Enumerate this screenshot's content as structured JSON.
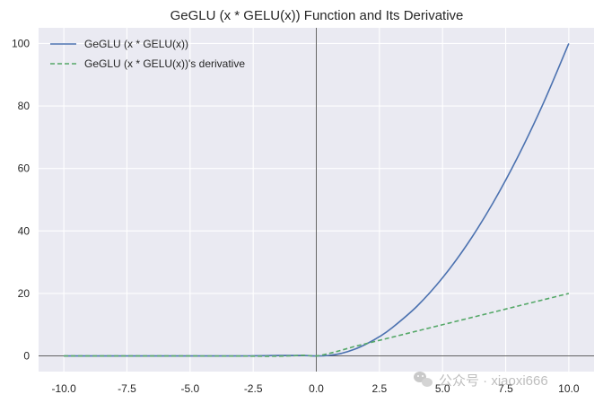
{
  "chart_data": {
    "type": "line",
    "title": "GeGLU (x * GELU(x)) Function and Its Derivative",
    "xlabel": "",
    "ylabel": "",
    "xlim": [
      -11.0,
      11.0
    ],
    "ylim": [
      -5,
      105
    ],
    "xticks": [
      -10.0,
      -7.5,
      -5.0,
      -2.5,
      0.0,
      2.5,
      5.0,
      7.5,
      10.0
    ],
    "xtick_labels": [
      "-10.0",
      "-7.5",
      "-5.0",
      "-2.5",
      "0.0",
      "2.5",
      "5.0",
      "7.5",
      "10.0"
    ],
    "yticks": [
      0,
      20,
      40,
      60,
      80,
      100
    ],
    "ytick_labels": [
      "0",
      "20",
      "40",
      "60",
      "80",
      "100"
    ],
    "grid": true,
    "legend_position": "top-left",
    "series": [
      {
        "name": "GeGLU (x * GELU(x))",
        "color": "#4c72b0",
        "style": "solid",
        "x": [
          -10,
          -8,
          -6,
          -4,
          -3,
          -2.5,
          -2,
          -1.5,
          -1,
          -0.5,
          0,
          0.5,
          1,
          1.5,
          2,
          2.5,
          3,
          4,
          5,
          6,
          7,
          8,
          9,
          10
        ],
        "y": [
          0,
          0,
          0,
          0.005,
          0.012,
          0.04,
          0.091,
          0.15,
          0.159,
          0.154,
          0,
          0.173,
          0.841,
          2.1,
          3.909,
          6.18,
          8.996,
          16.0,
          25.0,
          36.0,
          49.0,
          64.0,
          81.0,
          100.0
        ]
      },
      {
        "name": "GeGLU (x * GELU(x))'s derivative",
        "color": "#55a868",
        "style": "dashed",
        "x": [
          -10,
          -8,
          -6,
          -4,
          -3,
          -2.5,
          -2,
          -1.5,
          -1,
          -0.5,
          0,
          0.5,
          1,
          1.5,
          2,
          2.5,
          3,
          4,
          5,
          6,
          7,
          8,
          9,
          10
        ],
        "y": [
          0,
          0,
          0,
          -0.01,
          -0.03,
          -0.06,
          -0.09,
          -0.06,
          0.03,
          0.21,
          0,
          0.8,
          1.85,
          3.0,
          4.0,
          5.0,
          6.0,
          8.0,
          10.0,
          12.0,
          14.0,
          16.0,
          18.0,
          20.0
        ]
      }
    ],
    "colors": {
      "plot_background": "#eaeaf2",
      "grid": "#ffffff",
      "axis_line": "#000000"
    }
  },
  "watermark": {
    "text": "公众号 · xiaoxi666",
    "icon": "wechat-icon"
  }
}
